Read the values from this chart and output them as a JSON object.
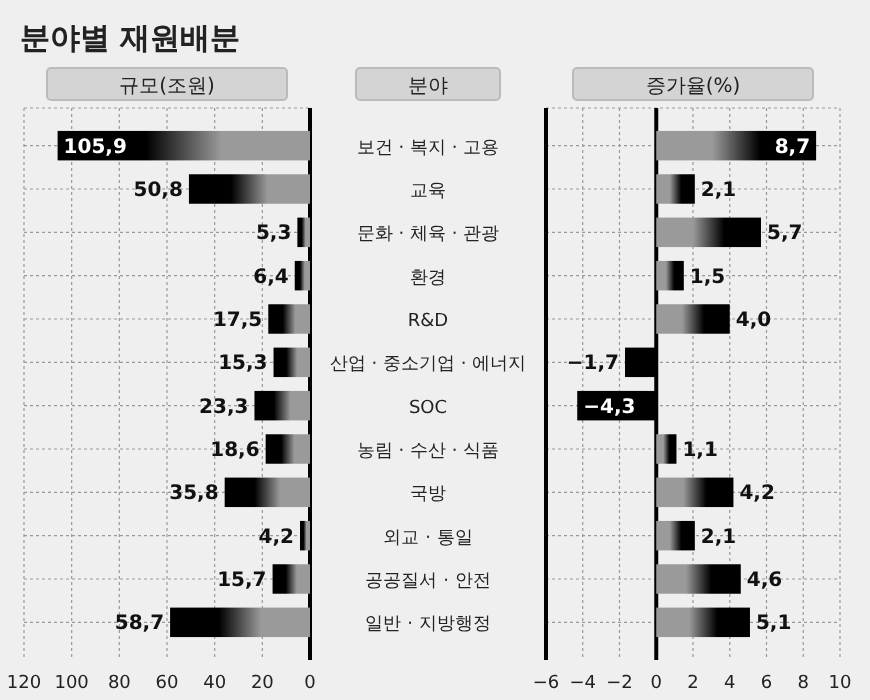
{
  "chart_data": [
    {
      "type": "bar",
      "orientation": "horizontal",
      "title": "분야별 재원배분",
      "xlabel": "규모(조원)",
      "ylabel": "분야",
      "categories": [
        "보건 · 복지 · 고용",
        "교육",
        "문화 · 체육 · 관광",
        "환경",
        "R&D",
        "산업 · 중소기업 · 에너지",
        "SOC",
        "농림 · 수산 · 식품",
        "국방",
        "외교 · 통일",
        "공공질서 · 안전",
        "일반 · 지방행정"
      ],
      "series": [
        {
          "color": "#000000",
          "values": [
            105.9,
            50.8,
            5.3,
            6.4,
            17.5,
            15.3,
            23.3,
            18.6,
            35.8,
            4.2,
            15.7,
            58.7
          ],
          "value_labels": [
            "105,9",
            "50,8",
            "5,3",
            "6,4",
            "17,5",
            "15,3",
            "23,3",
            "18,6",
            "35,8",
            "4,2",
            "15,7",
            "58,7"
          ]
        }
      ],
      "xlim": [
        120,
        0
      ],
      "xticks": [
        120,
        100,
        80,
        60,
        40,
        20,
        0
      ],
      "grid": true
    },
    {
      "type": "bar",
      "orientation": "horizontal",
      "xlabel": "증가율(%)",
      "series": [
        {
          "color": "#000000",
          "values": [
            8.7,
            2.1,
            5.7,
            1.5,
            4.0,
            -1.7,
            -4.3,
            1.1,
            4.2,
            2.1,
            4.6,
            5.1
          ],
          "value_labels": [
            "8,7",
            "2,1",
            "5,7",
            "1,5",
            "4,0",
            "−1,7",
            "−4,3",
            "1,1",
            "4,2",
            "2,1",
            "4,6",
            "5,1"
          ]
        }
      ],
      "xlim": [
        -6,
        10
      ],
      "xticks": [
        {
          "value": -6,
          "label": "−6"
        },
        {
          "value": -4,
          "label": "−4"
        },
        {
          "value": -2,
          "label": "−2"
        },
        0,
        2,
        4,
        6,
        8,
        10
      ],
      "tick_labels": "x",
      "grid": true
    }
  ]
}
